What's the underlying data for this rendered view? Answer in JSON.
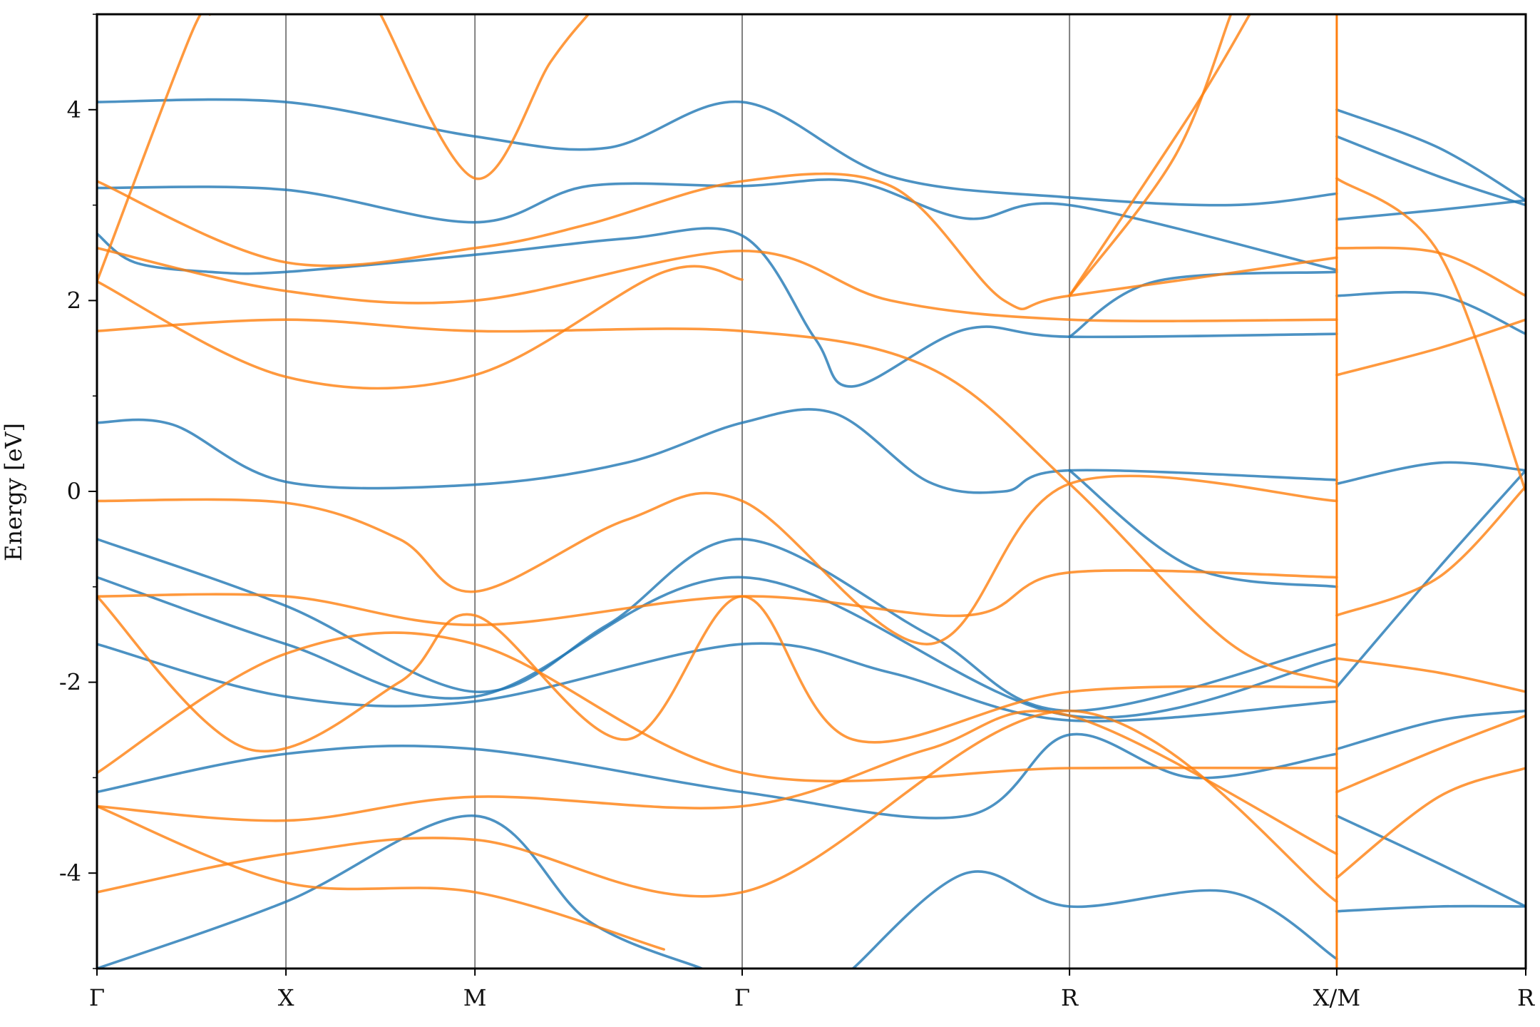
{
  "chart_data": {
    "type": "line",
    "title": "",
    "xlabel": "",
    "ylabel": "Energy [eV]",
    "ylim": [
      -5,
      5
    ],
    "yticks": [
      -4,
      -2,
      0,
      2,
      4
    ],
    "yticks_minor": [
      -5,
      -3,
      -1,
      1,
      3,
      5
    ],
    "grid": false,
    "legend": "none",
    "colors": {
      "spin_up": "#1f77b4",
      "spin_down": "#ff7f0e",
      "kpoint_line": "#808080",
      "axes": "#000000"
    },
    "kpath": {
      "labels": [
        "Γ",
        "X",
        "M",
        "Γ",
        "R",
        "X/M",
        "R"
      ],
      "positions": [
        0,
        0.5,
        1.0,
        1.707,
        2.573,
        3.28,
        3.78
      ],
      "segment_break_after": "X/M"
    },
    "series": [
      {
        "color_key": "spin_up",
        "style": "flat-ish",
        "points": [
          [
            0,
            4.08
          ],
          [
            0.5,
            4.08
          ],
          [
            1.0,
            3.72
          ],
          [
            1.35,
            3.6
          ],
          [
            1.707,
            4.08
          ],
          [
            2.1,
            3.3
          ],
          [
            2.573,
            3.08
          ],
          [
            3.0,
            3.0
          ],
          [
            3.28,
            3.12
          ]
        ]
      },
      {
        "color_key": "spin_up",
        "style": "curved",
        "points": [
          [
            0,
            3.18
          ],
          [
            0.5,
            3.16
          ],
          [
            1.0,
            2.82
          ],
          [
            1.3,
            3.2
          ],
          [
            1.707,
            3.2
          ],
          [
            2.0,
            3.25
          ],
          [
            2.3,
            2.86
          ],
          [
            2.573,
            3.0
          ],
          [
            3.28,
            2.32
          ]
        ]
      },
      {
        "color_key": "spin_up",
        "points": [
          [
            0,
            2.7
          ],
          [
            0.1,
            2.4
          ],
          [
            0.3,
            2.3
          ],
          [
            0.5,
            2.3
          ],
          [
            1.0,
            2.48
          ],
          [
            1.4,
            2.65
          ],
          [
            1.707,
            2.68
          ],
          [
            1.9,
            1.6
          ],
          [
            2.0,
            1.1
          ],
          [
            2.3,
            1.7
          ],
          [
            2.573,
            1.62
          ],
          [
            3.28,
            1.65
          ]
        ]
      },
      {
        "color_key": "spin_up",
        "points": [
          [
            0,
            0.72
          ],
          [
            0.2,
            0.7
          ],
          [
            0.5,
            0.1
          ],
          [
            1.0,
            0.07
          ],
          [
            1.4,
            0.3
          ],
          [
            1.707,
            0.72
          ],
          [
            1.95,
            0.82
          ],
          [
            2.2,
            0.1
          ],
          [
            2.4,
            0.0
          ],
          [
            2.573,
            0.22
          ],
          [
            3.28,
            0.12
          ]
        ]
      },
      {
        "color_key": "spin_up",
        "points": [
          [
            0,
            -0.5
          ],
          [
            0.5,
            -1.2
          ],
          [
            1.0,
            -2.1
          ],
          [
            1.35,
            -1.4
          ],
          [
            1.707,
            -0.5
          ],
          [
            2.2,
            -1.5
          ],
          [
            2.573,
            -2.3
          ],
          [
            3.28,
            -1.6
          ]
        ]
      },
      {
        "color_key": "spin_up",
        "points": [
          [
            0,
            -0.9
          ],
          [
            0.5,
            -1.6
          ],
          [
            1.0,
            -2.15
          ],
          [
            1.707,
            -0.9
          ],
          [
            2.573,
            -2.35
          ],
          [
            3.28,
            -1.75
          ]
        ]
      },
      {
        "color_key": "spin_up",
        "points": [
          [
            0,
            -1.6
          ],
          [
            0.5,
            -2.15
          ],
          [
            1.0,
            -2.2
          ],
          [
            1.707,
            -1.6
          ],
          [
            2.1,
            -1.9
          ],
          [
            2.573,
            -2.4
          ],
          [
            3.28,
            -2.2
          ]
        ]
      },
      {
        "color_key": "spin_up",
        "points": [
          [
            0,
            -3.15
          ],
          [
            0.5,
            -2.75
          ],
          [
            1.0,
            -2.7
          ],
          [
            1.707,
            -3.15
          ],
          [
            2.3,
            -3.4
          ],
          [
            2.573,
            -2.55
          ],
          [
            2.9,
            -3.0
          ],
          [
            3.28,
            -2.75
          ]
        ]
      },
      {
        "color_key": "spin_up",
        "points": [
          [
            0,
            -5.0
          ],
          [
            0.5,
            -4.3
          ],
          [
            1.0,
            -3.4
          ],
          [
            1.3,
            -4.5
          ],
          [
            1.6,
            -5.0
          ]
        ]
      },
      {
        "color_key": "spin_up",
        "points": [
          [
            2.0,
            -5.0
          ],
          [
            2.3,
            -4.0
          ],
          [
            2.573,
            -4.35
          ],
          [
            3.0,
            -4.2
          ],
          [
            3.28,
            -4.9
          ]
        ]
      },
      {
        "color_key": "spin_up",
        "points": [
          [
            2.573,
            1.62
          ],
          [
            2.8,
            2.2
          ],
          [
            3.28,
            2.3
          ]
        ]
      },
      {
        "color_key": "spin_up",
        "points": [
          [
            2.573,
            0.22
          ],
          [
            2.9,
            -0.8
          ],
          [
            3.28,
            -1.0
          ]
        ]
      },
      {
        "color_key": "spin_up",
        "points": [
          [
            3.28,
            4.0
          ],
          [
            3.55,
            3.6
          ],
          [
            3.78,
            3.05
          ]
        ]
      },
      {
        "color_key": "spin_up",
        "points": [
          [
            3.28,
            3.72
          ],
          [
            3.55,
            3.3
          ],
          [
            3.78,
            3.0
          ]
        ]
      },
      {
        "color_key": "spin_up",
        "points": [
          [
            3.28,
            2.85
          ],
          [
            3.55,
            2.95
          ],
          [
            3.78,
            3.05
          ]
        ]
      },
      {
        "color_key": "spin_up",
        "points": [
          [
            3.28,
            2.05
          ],
          [
            3.55,
            2.06
          ],
          [
            3.78,
            1.65
          ]
        ]
      },
      {
        "color_key": "spin_up",
        "points": [
          [
            3.28,
            0.08
          ],
          [
            3.55,
            0.3
          ],
          [
            3.78,
            0.22
          ]
        ]
      },
      {
        "color_key": "spin_up",
        "points": [
          [
            3.28,
            -2.05
          ],
          [
            3.55,
            -0.8
          ],
          [
            3.78,
            0.22
          ]
        ]
      },
      {
        "color_key": "spin_up",
        "points": [
          [
            3.28,
            -2.7
          ],
          [
            3.55,
            -2.4
          ],
          [
            3.78,
            -2.3
          ]
        ]
      },
      {
        "color_key": "spin_up",
        "points": [
          [
            3.28,
            -3.4
          ],
          [
            3.55,
            -3.9
          ],
          [
            3.78,
            -4.35
          ]
        ]
      },
      {
        "color_key": "spin_up",
        "points": [
          [
            3.28,
            -4.4
          ],
          [
            3.55,
            -4.35
          ],
          [
            3.78,
            -4.35
          ]
        ]
      },
      {
        "color_key": "spin_down",
        "points": [
          [
            0,
            3.25
          ],
          [
            0.5,
            2.4
          ],
          [
            1.0,
            2.55
          ],
          [
            1.3,
            2.8
          ],
          [
            1.707,
            3.25
          ],
          [
            2.1,
            3.2
          ],
          [
            2.4,
            2.0
          ],
          [
            2.573,
            2.05
          ],
          [
            3.28,
            2.45
          ]
        ]
      },
      {
        "color_key": "spin_down",
        "points": [
          [
            0,
            2.55
          ],
          [
            0.5,
            2.1
          ],
          [
            1.0,
            2.0
          ],
          [
            1.707,
            2.52
          ],
          [
            2.1,
            2.0
          ],
          [
            2.573,
            1.8
          ],
          [
            3.28,
            1.8
          ]
        ]
      },
      {
        "color_key": "spin_down",
        "points": [
          [
            0,
            1.68
          ],
          [
            0.5,
            1.8
          ],
          [
            1.0,
            1.68
          ],
          [
            1.707,
            1.68
          ],
          [
            2.2,
            1.3
          ],
          [
            2.573,
            0.08
          ],
          [
            3.0,
            -1.6
          ],
          [
            3.28,
            -2.0
          ]
        ]
      },
      {
        "color_key": "spin_down",
        "points": [
          [
            0,
            2.2
          ],
          [
            0.5,
            1.2
          ],
          [
            1.0,
            1.22
          ],
          [
            1.5,
            2.3
          ],
          [
            1.707,
            2.22
          ]
        ]
      },
      {
        "color_key": "spin_down",
        "points": [
          [
            0,
            2.2
          ],
          [
            0.25,
            4.8
          ],
          [
            0.3,
            5.0
          ]
        ]
      },
      {
        "color_key": "spin_down",
        "points": [
          [
            0.75,
            5.0
          ],
          [
            1.0,
            3.28
          ],
          [
            1.2,
            4.5
          ],
          [
            1.3,
            5.0
          ]
        ]
      },
      {
        "color_key": "spin_down",
        "points": [
          [
            0,
            -0.1
          ],
          [
            0.5,
            -0.12
          ],
          [
            0.8,
            -0.5
          ],
          [
            1.0,
            -1.05
          ],
          [
            1.4,
            -0.3
          ],
          [
            1.707,
            -0.1
          ],
          [
            2.2,
            -1.6
          ],
          [
            2.573,
            0.08
          ],
          [
            3.28,
            -0.1
          ]
        ]
      },
      {
        "color_key": "spin_down",
        "points": [
          [
            0,
            -1.1
          ],
          [
            0.5,
            -1.1
          ],
          [
            1.0,
            -1.4
          ],
          [
            1.707,
            -1.1
          ],
          [
            2.3,
            -1.3
          ],
          [
            2.573,
            -0.85
          ],
          [
            3.28,
            -0.9
          ]
        ]
      },
      {
        "color_key": "spin_down",
        "points": [
          [
            0,
            -1.1
          ],
          [
            0.4,
            -2.7
          ],
          [
            0.8,
            -2.0
          ],
          [
            1.0,
            -1.3
          ],
          [
            1.4,
            -2.6
          ],
          [
            1.707,
            -1.1
          ],
          [
            2.0,
            -2.6
          ],
          [
            2.573,
            -2.1
          ],
          [
            3.28,
            -2.05
          ]
        ]
      },
      {
        "color_key": "spin_down",
        "points": [
          [
            0,
            -2.95
          ],
          [
            0.5,
            -1.7
          ],
          [
            1.0,
            -1.6
          ],
          [
            1.707,
            -2.95
          ],
          [
            2.573,
            -2.9
          ],
          [
            3.28,
            -2.9
          ]
        ]
      },
      {
        "color_key": "spin_down",
        "points": [
          [
            0,
            -3.3
          ],
          [
            0.5,
            -3.45
          ],
          [
            1.0,
            -3.2
          ],
          [
            1.707,
            -3.3
          ],
          [
            2.2,
            -2.7
          ],
          [
            2.573,
            -2.35
          ],
          [
            3.28,
            -3.8
          ]
        ]
      },
      {
        "color_key": "spin_down",
        "points": [
          [
            0,
            -4.2
          ],
          [
            0.5,
            -3.8
          ],
          [
            1.0,
            -3.65
          ],
          [
            1.707,
            -4.2
          ],
          [
            2.573,
            -2.3
          ],
          [
            3.28,
            -4.3
          ]
        ]
      },
      {
        "color_key": "spin_down",
        "points": [
          [
            0,
            -3.3
          ],
          [
            0.5,
            -4.1
          ],
          [
            1.0,
            -4.2
          ],
          [
            1.5,
            -4.8
          ]
        ]
      },
      {
        "color_key": "spin_down",
        "points": [
          [
            2.573,
            2.05
          ],
          [
            2.9,
            4.0
          ],
          [
            3.05,
            5.0
          ]
        ]
      },
      {
        "color_key": "spin_down",
        "points": [
          [
            2.573,
            2.05
          ],
          [
            2.85,
            3.5
          ],
          [
            3.0,
            5.0
          ]
        ]
      },
      {
        "color_key": "spin_down",
        "points": [
          [
            3.28,
            3.28
          ],
          [
            3.55,
            2.5
          ],
          [
            3.78,
            0.0
          ]
        ]
      },
      {
        "color_key": "spin_down",
        "points": [
          [
            3.28,
            2.55
          ],
          [
            3.55,
            2.5
          ],
          [
            3.78,
            2.05
          ]
        ]
      },
      {
        "color_key": "spin_down",
        "points": [
          [
            3.28,
            1.22
          ],
          [
            3.55,
            1.5
          ],
          [
            3.78,
            1.8
          ]
        ]
      },
      {
        "color_key": "spin_down",
        "points": [
          [
            3.28,
            -1.3
          ],
          [
            3.55,
            -0.9
          ],
          [
            3.78,
            0.05
          ]
        ]
      },
      {
        "color_key": "spin_down",
        "points": [
          [
            3.28,
            -1.75
          ],
          [
            3.55,
            -1.9
          ],
          [
            3.78,
            -2.1
          ]
        ]
      },
      {
        "color_key": "spin_down",
        "points": [
          [
            3.28,
            -3.15
          ],
          [
            3.55,
            -2.7
          ],
          [
            3.78,
            -2.35
          ]
        ]
      },
      {
        "color_key": "spin_down",
        "points": [
          [
            3.28,
            -4.05
          ],
          [
            3.55,
            -3.2
          ],
          [
            3.78,
            -2.9
          ]
        ]
      }
    ]
  }
}
